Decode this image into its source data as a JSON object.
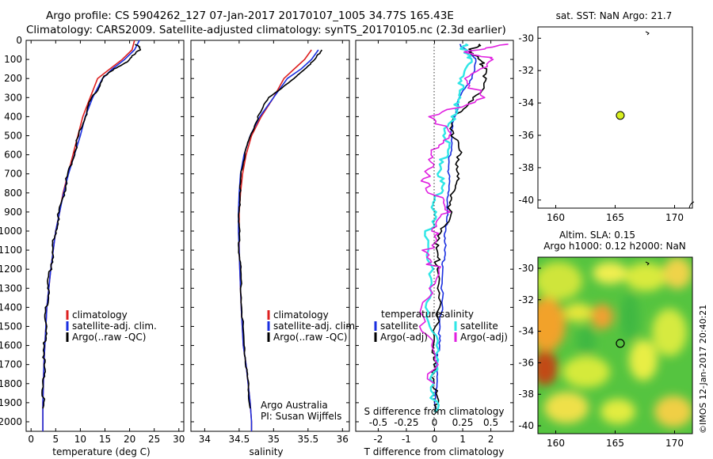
{
  "header": {
    "line1": "Argo profile: CS 5904262_127 07-Jan-2017 20170107_1005 34.77S 165.43E",
    "line2": "Climatology: CARS2009. Satellite-adjusted climatology: synTS_20170105.nc (2.3d earlier)"
  },
  "colors": {
    "climatology": "#dd2020",
    "satellite": "#1a2fe0",
    "argo": "#000000",
    "salinity_sat": "#2ee6e6",
    "salinity_argo": "#e020e0",
    "marker": "#d8ef20"
  },
  "depth_axis": {
    "range": [
      0,
      2050
    ],
    "ticks": [
      "0",
      "100",
      "200",
      "300",
      "400",
      "500",
      "600",
      "700",
      "800",
      "900",
      "1000",
      "1100",
      "1200",
      "1300",
      "1400",
      "1500",
      "1600",
      "1700",
      "1800",
      "1900",
      "2000"
    ]
  },
  "legend_main": {
    "climatology": "climatology",
    "satellite": "satellite-adj. clim.",
    "argo": "Argo(..raw -QC)"
  },
  "credit": {
    "line1": "Argo Australia",
    "line2": "PI: Susan Wijffels"
  },
  "legend_diff": {
    "temperature_head": "temperature",
    "salinity_head": "salinity",
    "t_sat": "satellite",
    "t_argo": "Argo(-adj)",
    "s_sat": "satellite",
    "s_argo": "Argo(-adj)"
  },
  "map_top": {
    "title": "sat. SST: NaN Argo: 21.7",
    "lon_ticks": [
      "160",
      "165",
      "170"
    ],
    "lat_ticks": [
      "-30",
      "-32",
      "-34",
      "-36",
      "-38",
      "-40"
    ]
  },
  "map_bottom": {
    "title1": "Altim. SLA: 0.15",
    "title2": "Argo h1000: 0.12 h2000: NaN",
    "lon_ticks": [
      "160",
      "165",
      "170"
    ],
    "lat_ticks": [
      "-30",
      "-32",
      "-34",
      "-36",
      "-38",
      "-40"
    ],
    "side_text": "©IMOS 12-Jan-2017 20:40:21"
  },
  "chart_data": [
    {
      "type": "line",
      "xlabel": "temperature (deg C)",
      "ylabel": "",
      "xlim": [
        -1,
        31
      ],
      "ylim": [
        2050,
        0
      ],
      "xticks": [
        "0",
        "5",
        "10",
        "15",
        "20",
        "25",
        "30"
      ],
      "series": [
        {
          "name": "climatology",
          "x": [
            21.0,
            20.5,
            18.5,
            16.0,
            13.5,
            12.0,
            10.5,
            9.5,
            8.5,
            7.5,
            6.5,
            5.8,
            5.0,
            4.5,
            4.0,
            3.6,
            3.2,
            3.0,
            2.8,
            2.6,
            2.5,
            2.4,
            2.4
          ],
          "y": [
            0,
            50,
            100,
            150,
            200,
            300,
            400,
            500,
            600,
            700,
            800,
            900,
            1000,
            1100,
            1200,
            1300,
            1400,
            1500,
            1600,
            1700,
            1800,
            1900,
            2050
          ]
        },
        {
          "name": "satellite-adj. clim.",
          "x": [
            22.0,
            21.0,
            19.0,
            16.5,
            14.5,
            12.5,
            11.0,
            10.0,
            8.8,
            7.6,
            6.6,
            5.8,
            5.0,
            4.5,
            4.0,
            3.6,
            3.2,
            3.0,
            2.8,
            2.6,
            2.5,
            2.4,
            2.4
          ],
          "y": [
            0,
            50,
            100,
            150,
            200,
            300,
            400,
            500,
            600,
            700,
            800,
            900,
            1000,
            1100,
            1200,
            1300,
            1400,
            1500,
            1600,
            1700,
            1800,
            1900,
            2050
          ]
        },
        {
          "name": "Argo(..raw -QC)",
          "x": [
            21.5,
            22.0,
            20.0,
            17.0,
            14.5,
            12.5,
            10.8,
            9.7,
            8.6,
            7.5,
            6.6,
            5.7,
            5.0,
            4.4,
            3.9,
            3.5,
            3.2,
            3.0,
            2.8,
            2.6,
            2.5,
            2.4
          ],
          "y": [
            20,
            50,
            100,
            150,
            200,
            300,
            400,
            500,
            600,
            700,
            800,
            900,
            1000,
            1100,
            1200,
            1300,
            1400,
            1500,
            1600,
            1700,
            1800,
            1930
          ]
        }
      ]
    },
    {
      "type": "line",
      "xlabel": "salinity",
      "ylabel": "",
      "xlim": [
        33.8,
        36.1
      ],
      "ylim": [
        2050,
        0
      ],
      "xticks": [
        "34",
        "34.5",
        "35",
        "35.5",
        "36"
      ],
      "series": [
        {
          "name": "climatology",
          "x": [
            35.55,
            35.45,
            35.3,
            35.15,
            35.0,
            34.82,
            34.68,
            34.6,
            34.55,
            34.52,
            34.5,
            34.5,
            34.5,
            34.51,
            34.53,
            34.56,
            34.6,
            34.63,
            34.66,
            34.68,
            34.68
          ],
          "y": [
            50,
            100,
            150,
            200,
            300,
            400,
            500,
            600,
            700,
            800,
            900,
            1000,
            1100,
            1200,
            1400,
            1600,
            1700,
            1800,
            1900,
            2000,
            2050
          ]
        },
        {
          "name": "satellite-adj. clim.",
          "x": [
            35.65,
            35.55,
            35.4,
            35.2,
            35.0,
            34.8,
            34.66,
            34.57,
            34.52,
            34.5,
            34.49,
            34.49,
            34.5,
            34.51,
            34.53,
            34.56,
            34.6,
            34.63,
            34.66,
            34.68,
            34.68
          ],
          "y": [
            50,
            100,
            150,
            200,
            300,
            400,
            500,
            600,
            700,
            800,
            900,
            1000,
            1100,
            1200,
            1400,
            1600,
            1700,
            1800,
            1900,
            2000,
            2050
          ]
        },
        {
          "name": "Argo(..raw -QC)",
          "x": [
            35.7,
            35.6,
            35.45,
            35.3,
            34.92,
            34.78,
            34.66,
            34.58,
            34.53,
            34.51,
            34.5,
            34.5,
            34.5,
            34.52,
            34.54,
            34.57,
            34.6,
            34.63,
            34.66
          ],
          "y": [
            50,
            100,
            150,
            200,
            300,
            400,
            500,
            600,
            700,
            800,
            900,
            1000,
            1100,
            1200,
            1400,
            1600,
            1700,
            1800,
            1930
          ]
        }
      ]
    },
    {
      "type": "line",
      "xlabel": "T difference from climatology",
      "x2label": "S difference from climatology",
      "ylabel": "",
      "xlim": [
        -2.8,
        2.8
      ],
      "ylim": [
        2050,
        0
      ],
      "xticks": [
        "-2",
        "-1",
        "0",
        "1",
        "2"
      ],
      "x2ticks": [
        "-0.5",
        "-0.25",
        "0",
        "0.25",
        "0.5"
      ],
      "series": [
        {
          "name": "temperature satellite",
          "x": [
            0.9,
            1.2,
            1.5,
            1.3,
            0.9,
            0.7,
            0.6,
            0.55,
            0.5,
            0.5,
            0.45,
            0.4,
            0.35,
            0.3,
            0.25,
            0.2,
            0.15,
            0.1,
            0.05,
            0.05
          ],
          "y": [
            20,
            60,
            100,
            200,
            300,
            400,
            500,
            600,
            700,
            800,
            900,
            1000,
            1100,
            1200,
            1400,
            1500,
            1600,
            1700,
            1800,
            1950
          ]
        },
        {
          "name": "temperature Argo(-adj)",
          "x": [
            1.6,
            1.3,
            1.5,
            1.9,
            1.7,
            1.2,
            0.6,
            0.7,
            0.9,
            0.8,
            0.7,
            0.5,
            0.3,
            0.0,
            0.2,
            0.1,
            0.0,
            -0.05,
            0.0,
            0.05,
            0.1
          ],
          "y": [
            20,
            50,
            100,
            150,
            250,
            350,
            400,
            500,
            600,
            700,
            800,
            900,
            1000,
            1100,
            1200,
            1400,
            1600,
            1700,
            1800,
            1900,
            1950
          ]
        },
        {
          "name": "salinity satellite",
          "x": [
            0.3,
            0.25,
            0.35,
            0.2,
            0.25,
            0.15,
            0.1,
            0.1,
            0.05,
            0.05,
            0.0,
            -0.05,
            -0.05,
            -0.05,
            0.0,
            0.0,
            0.0
          ],
          "y": [
            20,
            60,
            100,
            200,
            300,
            400,
            500,
            600,
            700,
            800,
            900,
            1000,
            1200,
            1400,
            1600,
            1800,
            1950
          ]
        },
        {
          "name": "salinity Argo(-adj)",
          "x": [
            0.6,
            0.3,
            0.5,
            0.3,
            0.4,
            0.0,
            0.1,
            0.0,
            -0.1,
            0.0,
            0.1,
            0.0,
            -0.05,
            0.0,
            -0.1,
            -0.05,
            0.0
          ],
          "y": [
            20,
            60,
            100,
            200,
            300,
            400,
            500,
            600,
            700,
            800,
            900,
            1000,
            1100,
            1200,
            1400,
            1600,
            1800
          ]
        }
      ]
    },
    {
      "type": "scatter",
      "title": "sat. SST: NaN Argo: 21.7",
      "xlim": [
        158.5,
        171.5
      ],
      "ylim": [
        -40.5,
        -29.3
      ],
      "points": [
        {
          "x": 165.43,
          "y": -34.77
        }
      ]
    },
    {
      "type": "heatmap",
      "title": "Altim. SLA: 0.15",
      "xlim": [
        158.5,
        171.5
      ],
      "ylim": [
        -40.5,
        -29.3
      ],
      "points": [
        {
          "x": 165.43,
          "y": -34.77
        }
      ]
    }
  ]
}
